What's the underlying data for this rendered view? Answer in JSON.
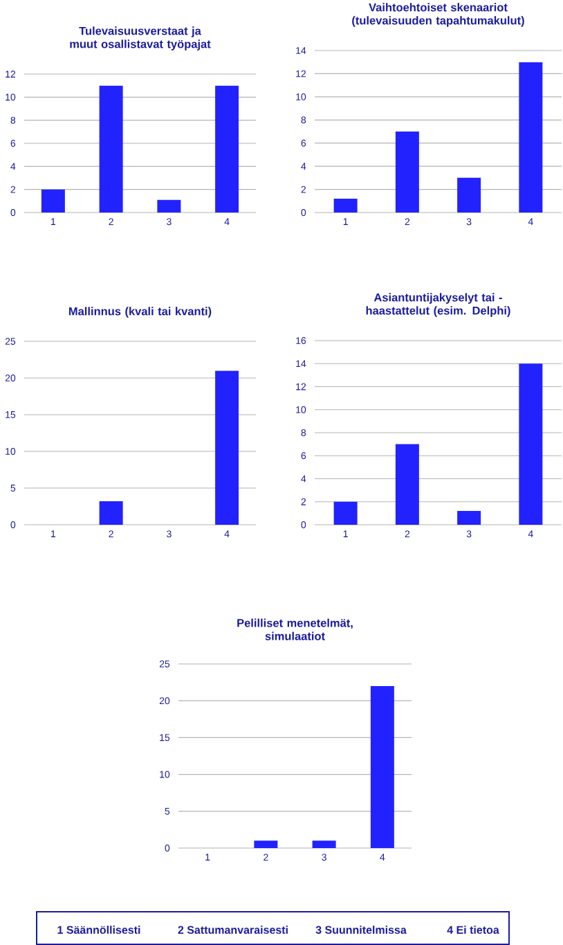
{
  "chart_data": [
    {
      "type": "bar",
      "title": "Tulevaisuusverstaat ja muut osallistavat työpajat",
      "categories": [
        "1",
        "2",
        "3",
        "4"
      ],
      "values": [
        2,
        11,
        1.1,
        11
      ],
      "color": "#2222ff",
      "ylim": [
        0,
        12
      ],
      "yticks": [
        0,
        2,
        4,
        6,
        8,
        10,
        12
      ],
      "grid": "y"
    },
    {
      "type": "bar",
      "title": "Vaihtoehtoiset skenaariot (tulevaisuuden tapahtumakulut)",
      "categories": [
        "1",
        "2",
        "3",
        "4"
      ],
      "values": [
        1.2,
        7,
        3,
        13
      ],
      "color": "#2222ff",
      "ylim": [
        0,
        14
      ],
      "yticks": [
        0,
        2,
        4,
        6,
        8,
        10,
        12,
        14
      ],
      "grid": "y"
    },
    {
      "type": "bar",
      "title": "Mallinnus (kvali tai kvanti)",
      "categories": [
        "1",
        "2",
        "3",
        "4"
      ],
      "values": [
        0,
        3.2,
        0,
        21
      ],
      "color": "#2222ff",
      "ylim": [
        0,
        25
      ],
      "yticks": [
        0,
        5,
        10,
        15,
        20,
        25
      ],
      "grid": "y"
    },
    {
      "type": "bar",
      "title": "Asiantuntijakyselyt tai -haastattelut (esim. Delphi)",
      "categories": [
        "1",
        "2",
        "3",
        "4"
      ],
      "values": [
        2,
        7,
        1.2,
        14
      ],
      "color": "#2222ff",
      "ylim": [
        0,
        16
      ],
      "yticks": [
        0,
        2,
        4,
        6,
        8,
        10,
        12,
        14,
        16
      ],
      "grid": "y"
    },
    {
      "type": "bar",
      "title": "Pelilliset menetelmät, simulaatiot",
      "categories": [
        "1",
        "2",
        "3",
        "4"
      ],
      "values": [
        0,
        1,
        1,
        22
      ],
      "color": "#2222ff",
      "ylim": [
        0,
        25
      ],
      "yticks": [
        0,
        5,
        10,
        15,
        20,
        25
      ],
      "grid": "y"
    },
    {
      "type": "other",
      "annotations": [
        "1 Säännöllisesti",
        "2 Sattumanvaraisesti",
        "3 Suunnitelmissa",
        "4 Ei tietoa"
      ]
    }
  ]
}
